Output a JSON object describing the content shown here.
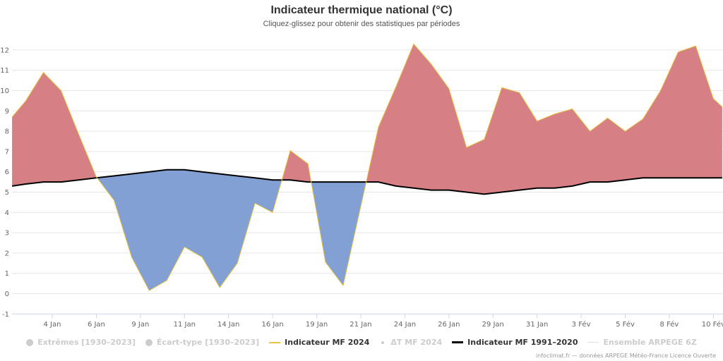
{
  "header": {
    "title": "Indicateur thermique national (°C)",
    "subtitle": "Cliquez-glissez pour obtenir des statistiques par périodes"
  },
  "legend": [
    {
      "label": "Extrêmes [1930–2023]",
      "symbol": "dot",
      "active": false,
      "color": "#cccccc"
    },
    {
      "label": "Écart-type [1930–2023]",
      "symbol": "dot",
      "active": false,
      "color": "#cccccc"
    },
    {
      "label": "Indicateur MF 2024",
      "symbol": "line",
      "active": true,
      "color": "#e8c547"
    },
    {
      "label": "ΔT MF 2024",
      "symbol": "small-dot",
      "active": false,
      "color": "#cccccc"
    },
    {
      "label": "Indicateur MF 1991–2020",
      "symbol": "thick-line",
      "active": true,
      "color": "#000000"
    },
    {
      "label": "Ensemble ARPEGE 6Z",
      "symbol": "line",
      "active": false,
      "color": "#dddddd"
    }
  ],
  "credits": "infoclimat.fr — données ARPEGE Météo-France Licence Ouverte",
  "colors": {
    "above_normal": "#d4797e",
    "below_normal": "#7b9bd2",
    "actual_line": "#e8c547",
    "normal_line": "#000000",
    "grid": "#e6e6e6",
    "axis": "#ccd6eb"
  },
  "chart_data": {
    "type": "area",
    "title": "Indicateur thermique national (°C)",
    "subtitle": "Cliquez-glissez pour obtenir des statistiques par périodes",
    "xlabel": "",
    "ylabel": "",
    "ylim": [
      -1,
      12.6
    ],
    "yticks": [
      -1,
      0,
      1,
      2,
      3,
      4,
      5,
      6,
      7,
      8,
      9,
      10,
      11,
      12
    ],
    "xlim_days": [
      1.72,
      42.2
    ],
    "xticks": [
      {
        "label": "4 Jan",
        "day": 4
      },
      {
        "label": "6 Jan",
        "day": 6.5
      },
      {
        "label": "9 Jan",
        "day": 9
      },
      {
        "label": "11 Jan",
        "day": 11.5
      },
      {
        "label": "14 Jan",
        "day": 14
      },
      {
        "label": "16 Jan",
        "day": 16.5
      },
      {
        "label": "19 Jan",
        "day": 19
      },
      {
        "label": "21 Jan",
        "day": 21.5
      },
      {
        "label": "24 Jan",
        "day": 24
      },
      {
        "label": "26 Jan",
        "day": 26.5
      },
      {
        "label": "29 Jan",
        "day": 29
      },
      {
        "label": "31 Jan",
        "day": 31.5
      },
      {
        "label": "3 Fév",
        "day": 34
      },
      {
        "label": "5 Fév",
        "day": 36.5
      },
      {
        "label": "8 Fév",
        "day": 39
      },
      {
        "label": "10 Fév",
        "day": 41.5
      }
    ],
    "grid": true,
    "legend_position": "bottom",
    "fill_between": {
      "above": "Indicateur MF 2024 > normale (rouge)",
      "below": "Indicateur MF 2024 < normale (bleu)"
    },
    "x": [
      1.72,
      2.5,
      3.5,
      4.5,
      5.5,
      6.5,
      7.5,
      8.5,
      9.5,
      10.5,
      11.5,
      12.5,
      13.5,
      14.5,
      15.5,
      16.5,
      17.5,
      18.5,
      19.5,
      20.5,
      21.5,
      22.5,
      23.5,
      24.5,
      25.5,
      26.5,
      27.5,
      28.5,
      29.5,
      30.5,
      31.5,
      32.5,
      33.5,
      34.5,
      35.5,
      36.5,
      37.5,
      38.5,
      39.5,
      40.5,
      41.5,
      42.0
    ],
    "series": [
      {
        "name": "Indicateur MF 2024",
        "values": [
          8.7,
          9.5,
          10.9,
          10.0,
          7.85,
          5.75,
          4.6,
          1.8,
          0.15,
          0.65,
          2.3,
          1.8,
          0.3,
          1.5,
          4.45,
          4.0,
          7.05,
          6.4,
          1.55,
          0.4,
          4.3,
          8.2,
          10.2,
          12.3,
          11.3,
          10.1,
          7.2,
          7.6,
          10.15,
          9.9,
          8.5,
          8.85,
          9.1,
          8.0,
          8.65,
          8.0,
          8.6,
          10.0,
          11.9,
          12.2,
          9.6,
          9.2
        ]
      },
      {
        "name": "Indicateur MF 1991–2020",
        "values": [
          5.3,
          5.4,
          5.5,
          5.5,
          5.6,
          5.7,
          5.8,
          5.9,
          6.0,
          6.1,
          6.1,
          6.0,
          5.9,
          5.8,
          5.7,
          5.6,
          5.6,
          5.5,
          5.5,
          5.5,
          5.5,
          5.5,
          5.3,
          5.2,
          5.1,
          5.1,
          5.0,
          4.9,
          5.0,
          5.1,
          5.2,
          5.2,
          5.3,
          5.5,
          5.5,
          5.6,
          5.7,
          5.7,
          5.7,
          5.7,
          5.7,
          5.7
        ]
      }
    ]
  }
}
